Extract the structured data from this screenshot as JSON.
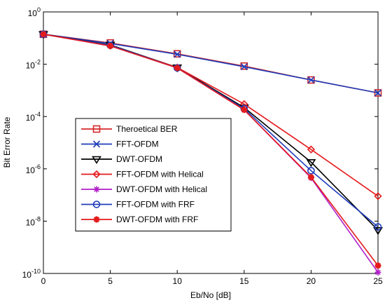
{
  "chart_data": {
    "type": "line",
    "title": "",
    "xlabel": "Eb/No [dB]",
    "ylabel": "Bit Error Rate",
    "x": [
      0,
      5,
      10,
      15,
      20,
      25
    ],
    "xlim": [
      0,
      25
    ],
    "ylim": [
      1e-10,
      1
    ],
    "yscale": "log",
    "x_ticks": [
      "0",
      "5",
      "10",
      "15",
      "20",
      "25"
    ],
    "y_ticks": [
      {
        "base": "10",
        "exp": "0"
      },
      {
        "base": "10",
        "exp": "-2"
      },
      {
        "base": "10",
        "exp": "-4"
      },
      {
        "base": "10",
        "exp": "-6"
      },
      {
        "base": "10",
        "exp": "-8"
      },
      {
        "base": "10",
        "exp": "-10"
      }
    ],
    "grid": false,
    "legend_position": "lower-left",
    "series": [
      {
        "name": "Theroetical BER",
        "color": "#d62728",
        "marker": "square",
        "values": [
          0.14,
          0.065,
          0.025,
          0.0085,
          0.0025,
          0.0008
        ]
      },
      {
        "name": "FFT-OFDM",
        "color": "#1f3cba",
        "marker": "x",
        "values": [
          0.14,
          0.062,
          0.024,
          0.008,
          0.0025,
          0.0008
        ]
      },
      {
        "name": "DWT-OFDM",
        "color": "#000000",
        "marker": "triangle-down",
        "values": [
          0.14,
          0.055,
          0.0075,
          0.00022,
          1.8e-06,
          4.5e-09
        ]
      },
      {
        "name": "FFT-OFDM with Helical",
        "color": "#e41a1c",
        "marker": "diamond",
        "values": [
          0.14,
          0.052,
          0.0075,
          0.0003,
          5.5e-06,
          9e-08
        ]
      },
      {
        "name": "DWT-OFDM with Helical",
        "color": "#b01ec8",
        "marker": "star",
        "values": [
          0.14,
          0.05,
          0.0072,
          0.00018,
          4.5e-07,
          1.1e-10
        ]
      },
      {
        "name": "FFT-OFDM with FRF",
        "color": "#1f3cba",
        "marker": "circle",
        "values": [
          0.14,
          0.053,
          0.0072,
          0.0002,
          8.5e-07,
          6e-09
        ]
      },
      {
        "name": "DWT-OFDM with FRF",
        "color": "#e41a1c",
        "marker": "asterisk",
        "values": [
          0.14,
          0.05,
          0.0072,
          0.00018,
          4.8e-07,
          2e-10
        ]
      }
    ]
  }
}
